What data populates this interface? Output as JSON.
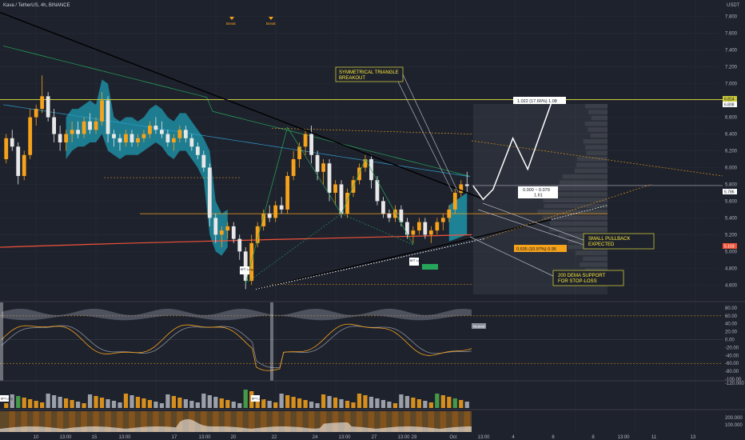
{
  "header": {
    "symbol_title": "Kava / TetherUS, 4h, BINANCE",
    "currency": "USDT"
  },
  "colors": {
    "background": "#1e222d",
    "bull_candle": "#f7a21b",
    "bear_candle": "#e8e8e8",
    "trendline": "#000000",
    "resistance": "#c9c93a",
    "dema200": "#f0533a",
    "cloud": "#1d9bb0",
    "annotation_border": "#c9c93a",
    "annotation_text": "#ffeb3b",
    "projection": "#ffffff",
    "indicator_orange": "#f7a21b",
    "indicator_grey": "#8a8f9c",
    "grid": "#2a2e39"
  },
  "chart_data": {
    "type": "candlestick",
    "title": "Kava / TetherUS, 4h, BINANCE",
    "y_axis_price": {
      "ticks": [
        "7.800",
        "7.600",
        "7.400",
        "7.200",
        "7.000",
        "6.800",
        "6.600",
        "6.400",
        "6.200",
        "6.000",
        "5.800",
        "5.600",
        "5.400",
        "5.200",
        "5.000",
        "4.800",
        "4.600"
      ],
      "range": [
        4.45,
        7.95
      ]
    },
    "y_axis_oscillator": {
      "ticks": [
        "80.00",
        "60.00",
        "40.00",
        "20.00",
        "0.00",
        "-20.00",
        "-40.00",
        "-60.00",
        "-80.00",
        "-100.00"
      ]
    },
    "y_axis_volume": {
      "ticks": [
        "-120.000"
      ]
    },
    "y_axis_bottom": {
      "ticks": [
        "200.000",
        "100.000"
      ]
    },
    "x_axis": {
      "tick_labels": [
        "10",
        "13:00",
        "15",
        "13:00",
        "17",
        "13:00",
        "20",
        "22",
        "24",
        "13:00",
        "27",
        "13:00",
        "29",
        "Oct",
        "13:00",
        "4",
        "6",
        "8",
        "13:00",
        "11",
        "13"
      ]
    },
    "price_tags": {
      "resistance": "6.808",
      "resistance_small": "6.814",
      "current": "5.786",
      "dema": "5.103"
    },
    "key_levels": {
      "resistance": 6.81,
      "current": 5.786,
      "dema200_end": 5.1,
      "support_orange": 5.45
    },
    "annotations": {
      "triangle": "SYMMETRICAL TRIANGLE BREAKOUT",
      "pullback": "SMALL PULLBACK EXPECTED",
      "dema": "200 DEMA SUPPORT FOR STOP-LOSS",
      "target_box": "1.022 (17.66%) 1.08",
      "mid_box_top": "0.000 ~ 0.079",
      "mid_box_bottom": "1.61",
      "stop_box": "0.635 (10.97%) 0.95",
      "break_1": "Break",
      "break_2": "Break",
      "neutral_tag": "Neutral",
      "bp_tag_1": "BPT Long",
      "bp_tag_2": "BPT Long",
      "bp_tag_3": "BPT Long",
      "bp_tag_4": "BPT Long"
    },
    "candles": [
      [
        6.1,
        6.4,
        6.05,
        6.35
      ],
      [
        6.35,
        6.45,
        6.2,
        6.25
      ],
      [
        6.25,
        6.3,
        5.8,
        5.9
      ],
      [
        5.9,
        6.2,
        5.85,
        6.15
      ],
      [
        6.15,
        6.7,
        6.1,
        6.6
      ],
      [
        6.6,
        6.75,
        6.5,
        6.7
      ],
      [
        6.7,
        7.1,
        6.65,
        6.85
      ],
      [
        6.85,
        6.9,
        6.55,
        6.6
      ],
      [
        6.6,
        6.7,
        6.3,
        6.4
      ],
      [
        6.4,
        6.5,
        6.2,
        6.3
      ],
      [
        6.3,
        6.45,
        6.2,
        6.4
      ],
      [
        6.4,
        6.55,
        6.3,
        6.45
      ],
      [
        6.45,
        6.55,
        6.35,
        6.4
      ],
      [
        6.4,
        6.6,
        6.35,
        6.55
      ],
      [
        6.55,
        6.65,
        6.4,
        6.45
      ],
      [
        6.45,
        6.6,
        6.4,
        6.55
      ],
      [
        6.55,
        6.9,
        6.5,
        6.8
      ],
      [
        6.8,
        6.85,
        6.3,
        6.4
      ],
      [
        6.4,
        6.45,
        6.25,
        6.35
      ],
      [
        6.35,
        6.4,
        6.2,
        6.3
      ],
      [
        6.3,
        6.45,
        6.25,
        6.4
      ],
      [
        6.4,
        6.45,
        6.25,
        6.3
      ],
      [
        6.3,
        6.4,
        6.25,
        6.35
      ],
      [
        6.35,
        6.45,
        6.3,
        6.4
      ],
      [
        6.4,
        6.55,
        6.35,
        6.5
      ],
      [
        6.5,
        6.6,
        6.4,
        6.45
      ],
      [
        6.45,
        6.55,
        6.35,
        6.4
      ],
      [
        6.4,
        6.45,
        6.25,
        6.3
      ],
      [
        6.3,
        6.4,
        6.2,
        6.35
      ],
      [
        6.35,
        6.5,
        6.3,
        6.45
      ],
      [
        6.45,
        6.5,
        6.3,
        6.35
      ],
      [
        6.35,
        6.4,
        6.2,
        6.25
      ],
      [
        6.25,
        6.3,
        6.1,
        6.15
      ],
      [
        6.15,
        6.2,
        5.95,
        6.0
      ],
      [
        6.0,
        6.05,
        5.3,
        5.4
      ],
      [
        5.4,
        5.45,
        5.1,
        5.2
      ],
      [
        5.2,
        5.3,
        5.05,
        5.25
      ],
      [
        5.25,
        5.35,
        5.15,
        5.3
      ],
      [
        5.3,
        5.35,
        5.1,
        5.15
      ],
      [
        5.15,
        5.2,
        4.9,
        5.0
      ],
      [
        5.0,
        5.05,
        4.55,
        4.65
      ],
      [
        4.65,
        5.2,
        4.6,
        5.1
      ],
      [
        5.1,
        5.35,
        5.05,
        5.3
      ],
      [
        5.3,
        5.5,
        5.25,
        5.45
      ],
      [
        5.45,
        5.55,
        5.35,
        5.4
      ],
      [
        5.4,
        5.6,
        5.35,
        5.55
      ],
      [
        5.55,
        5.65,
        5.45,
        5.5
      ],
      [
        5.5,
        5.95,
        5.45,
        5.9
      ],
      [
        5.9,
        6.2,
        5.85,
        6.1
      ],
      [
        6.1,
        6.3,
        6.0,
        6.25
      ],
      [
        6.25,
        6.45,
        6.15,
        6.4
      ],
      [
        6.4,
        6.5,
        6.05,
        6.15
      ],
      [
        6.15,
        6.2,
        5.85,
        5.95
      ],
      [
        5.95,
        6.1,
        5.8,
        6.05
      ],
      [
        6.05,
        6.1,
        5.6,
        5.7
      ],
      [
        5.7,
        5.85,
        5.55,
        5.8
      ],
      [
        5.8,
        5.85,
        5.4,
        5.45
      ],
      [
        5.45,
        5.75,
        5.4,
        5.7
      ],
      [
        5.7,
        5.9,
        5.65,
        5.85
      ],
      [
        5.85,
        6.05,
        5.8,
        6.0
      ],
      [
        6.0,
        6.15,
        5.95,
        6.1
      ],
      [
        6.1,
        6.15,
        5.75,
        5.85
      ],
      [
        5.85,
        5.9,
        5.55,
        5.6
      ],
      [
        5.6,
        5.65,
        5.4,
        5.45
      ],
      [
        5.45,
        5.5,
        5.35,
        5.4
      ],
      [
        5.4,
        5.55,
        5.35,
        5.5
      ],
      [
        5.5,
        5.55,
        5.3,
        5.35
      ],
      [
        5.35,
        5.4,
        5.15,
        5.2
      ],
      [
        5.2,
        5.3,
        5.1,
        5.25
      ],
      [
        5.25,
        5.4,
        5.2,
        5.35
      ],
      [
        5.35,
        5.4,
        5.15,
        5.2
      ],
      [
        5.2,
        5.3,
        5.1,
        5.25
      ],
      [
        5.25,
        5.4,
        5.2,
        5.35
      ],
      [
        5.35,
        5.45,
        5.25,
        5.4
      ],
      [
        5.4,
        5.55,
        5.35,
        5.5
      ],
      [
        5.5,
        5.75,
        5.45,
        5.7
      ],
      [
        5.7,
        5.85,
        5.65,
        5.8
      ],
      [
        5.8,
        5.95,
        5.7,
        5.78
      ]
    ],
    "projection_path": [
      [
        5.78,
        0
      ],
      [
        5.62,
        2
      ],
      [
        5.74,
        4
      ],
      [
        6.35,
        8
      ],
      [
        5.98,
        11
      ],
      [
        6.81,
        16
      ]
    ]
  }
}
